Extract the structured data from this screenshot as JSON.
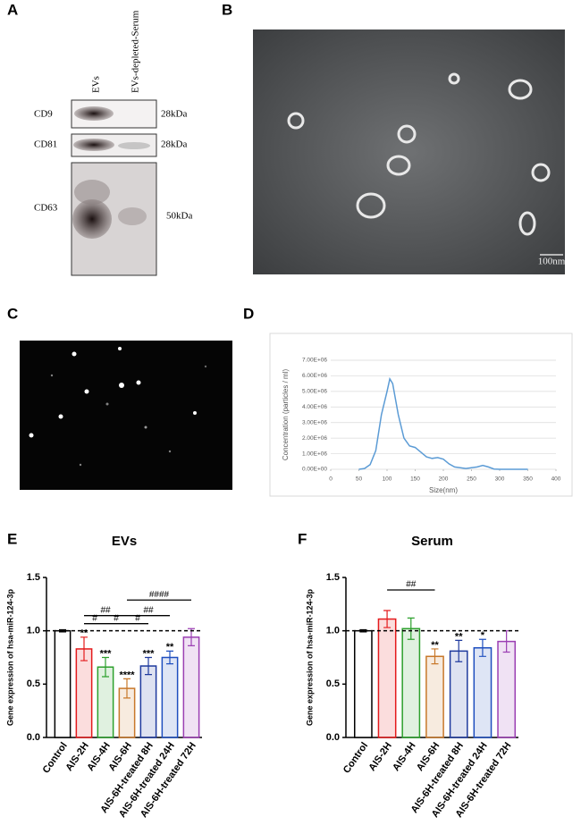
{
  "panel_labels": [
    "A",
    "B",
    "C",
    "D",
    "E",
    "F"
  ],
  "blot": {
    "lanes": [
      "EVs",
      "EVs-depleted-Serum"
    ],
    "bands": [
      {
        "name": "CD9",
        "size": "28kDa"
      },
      {
        "name": "CD81",
        "size": "28kDa"
      },
      {
        "name": "CD63",
        "size": "50kDa"
      }
    ]
  },
  "tem": {
    "scale_label": "100nm"
  },
  "chart_data": [
    {
      "type": "line",
      "x_label": "Size(nm)",
      "y_label": "Concentration (particles / ml)",
      "color": "#5b9bd5",
      "x": [
        50,
        60,
        70,
        80,
        90,
        100,
        105,
        110,
        120,
        130,
        140,
        150,
        160,
        170,
        180,
        190,
        200,
        210,
        220,
        240,
        260,
        270,
        280,
        290,
        300,
        350
      ],
      "values": [
        0,
        50000,
        300000,
        1200000,
        3500000,
        5000000,
        5800000,
        5500000,
        3500000,
        2000000,
        1500000,
        1400000,
        1100000,
        800000,
        700000,
        750000,
        650000,
        350000,
        150000,
        50000,
        150000,
        250000,
        150000,
        20000,
        0,
        0
      ],
      "xlim": [
        0,
        400
      ],
      "xticks": [
        0,
        50,
        100,
        150,
        200,
        250,
        300,
        350,
        400
      ],
      "ylim": [
        0,
        7000000
      ],
      "yticks": [
        {
          "value": 0,
          "label": "0.00E+00"
        },
        {
          "value": 1000000,
          "label": "1.00E+06"
        },
        {
          "value": 2000000,
          "label": "2.00E+06"
        },
        {
          "value": 3000000,
          "label": "3.00E+06"
        },
        {
          "value": 4000000,
          "label": "4.00E+06"
        },
        {
          "value": 5000000,
          "label": "5.00E+06"
        },
        {
          "value": 6000000,
          "label": "6.00E+06"
        },
        {
          "value": 7000000,
          "label": "7.00E+06"
        }
      ],
      "grid": true
    },
    {
      "type": "bar",
      "title": "EVs",
      "y_label": "Gene expression of hsa-miR-124-3p",
      "categories": [
        "Control",
        "AIS-2H",
        "AIS-4H",
        "AIS-6H",
        "AIS-6H-treated 8H",
        "AIS-6H-treated 24H",
        "AIS-6H-treated 72H"
      ],
      "values": [
        1.0,
        0.83,
        0.66,
        0.46,
        0.67,
        0.75,
        0.94
      ],
      "errors": [
        0.01,
        0.11,
        0.09,
        0.09,
        0.08,
        0.06,
        0.08
      ],
      "colors": [
        "#000000",
        "#e41a1c",
        "#2ca02c",
        "#c8782a",
        "#1f3a9e",
        "#1f4fbf",
        "#9b3fb3"
      ],
      "stars": [
        null,
        "**",
        "***",
        "****",
        "***",
        "**",
        null
      ],
      "brackets": [
        {
          "label": "#",
          "from": 1,
          "to": 2
        },
        {
          "label": "#",
          "from": 2,
          "to": 3
        },
        {
          "label": "#",
          "from": 3,
          "to": 4
        },
        {
          "label": "##",
          "from": 1,
          "to": 3
        },
        {
          "label": "##",
          "from": 3,
          "to": 5
        },
        {
          "label": "####",
          "from": 3,
          "to": 6
        }
      ],
      "reference_line": 1.0,
      "ylim": [
        0,
        1.5
      ],
      "yticks": [
        {
          "value": 0,
          "label": "0.0"
        },
        {
          "value": 0.5,
          "label": "0.5"
        },
        {
          "value": 1,
          "label": "1.0"
        },
        {
          "value": 1.5,
          "label": "1.5"
        }
      ]
    },
    {
      "type": "bar",
      "title": "Serum",
      "y_label": "Gene expression of hsa-miR-124-3p",
      "categories": [
        "Control",
        "AIS-2H",
        "AIS-4H",
        "AIS-6H",
        "AIS-6H-treated 8H",
        "AIS-6H-treated 24H",
        "AIS-6H-treated 72H"
      ],
      "values": [
        1.0,
        1.11,
        1.02,
        0.76,
        0.81,
        0.84,
        0.9
      ],
      "errors": [
        0.01,
        0.08,
        0.1,
        0.07,
        0.1,
        0.08,
        0.1
      ],
      "colors": [
        "#000000",
        "#e41a1c",
        "#2ca02c",
        "#c8782a",
        "#1f3a9e",
        "#1f4fbf",
        "#9b3fb3"
      ],
      "stars": [
        null,
        null,
        null,
        "**",
        "**",
        "*",
        null
      ],
      "brackets": [
        {
          "label": "##",
          "from": 1,
          "to": 3
        }
      ],
      "reference_line": 1.0,
      "ylim": [
        0,
        1.5
      ],
      "yticks": [
        {
          "value": 0,
          "label": "0.0"
        },
        {
          "value": 0.5,
          "label": "0.5"
        },
        {
          "value": 1,
          "label": "1.0"
        },
        {
          "value": 1.5,
          "label": "1.5"
        }
      ]
    }
  ]
}
